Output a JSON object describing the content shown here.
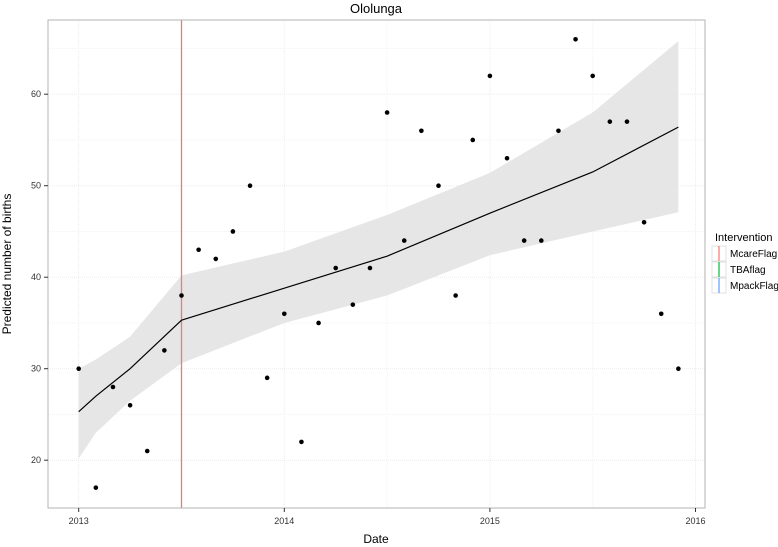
{
  "chart_data": {
    "type": "scatter",
    "title": "Ololunga",
    "xlabel": "Date",
    "ylabel": "Predicted number of births",
    "xlim": [
      "2012-11",
      "2016-01"
    ],
    "ylim": [
      15,
      68
    ],
    "x_ticks": [
      "2013",
      "2014",
      "2015",
      "2016"
    ],
    "y_ticks": [
      20,
      30,
      40,
      50,
      60
    ],
    "grid": true,
    "points": {
      "x": [
        "2013-01",
        "2013-02",
        "2013-03",
        "2013-04",
        "2013-05",
        "2013-06",
        "2013-07",
        "2013-08",
        "2013-09",
        "2013-10",
        "2013-11",
        "2013-12",
        "2014-01",
        "2014-02",
        "2014-03",
        "2014-04",
        "2014-05",
        "2014-06",
        "2014-07",
        "2014-08",
        "2014-09",
        "2014-10",
        "2014-11",
        "2014-12",
        "2015-01",
        "2015-02",
        "2015-03",
        "2015-04",
        "2015-05",
        "2015-06",
        "2015-07",
        "2015-08",
        "2015-09",
        "2015-10",
        "2015-11",
        "2015-12"
      ],
      "y": [
        30,
        17,
        28,
        26,
        21,
        32,
        38,
        43,
        42,
        45,
        50,
        29,
        36,
        22,
        35,
        41,
        37,
        41,
        58,
        44,
        56,
        50,
        38,
        55,
        62,
        53,
        44,
        44,
        56,
        66,
        62,
        57,
        57,
        46,
        36,
        30
      ]
    },
    "fit": {
      "segments": [
        {
          "x": [
            "2013-01",
            "2013-02",
            "2013-04",
            "2013-07"
          ],
          "y": [
            25.3,
            27.0,
            30.0,
            35.3
          ],
          "lower": [
            20.2,
            23.0,
            26.5,
            30.6
          ],
          "upper": [
            30.0,
            31.0,
            33.5,
            40.2
          ]
        },
        {
          "x": [
            "2013-07",
            "2014-01",
            "2014-07",
            "2015-01",
            "2015-07",
            "2015-12"
          ],
          "y": [
            35.3,
            38.8,
            42.3,
            47.0,
            51.5,
            56.4
          ],
          "lower": [
            30.6,
            35.0,
            38.0,
            42.4,
            45.0,
            47.1
          ],
          "upper": [
            40.2,
            42.8,
            46.8,
            51.4,
            58.0,
            65.8
          ]
        }
      ]
    },
    "intervention_lines": [
      {
        "series": "McareFlag",
        "x": "2013-07"
      }
    ],
    "legend": {
      "title": "Intervention",
      "position": "right",
      "entries": [
        {
          "label": "McareFlag",
          "color": "#f8766d"
        },
        {
          "label": "TBAflag",
          "color": "#00ba38"
        },
        {
          "label": "MpackFlag",
          "color": "#619cff"
        }
      ]
    }
  }
}
